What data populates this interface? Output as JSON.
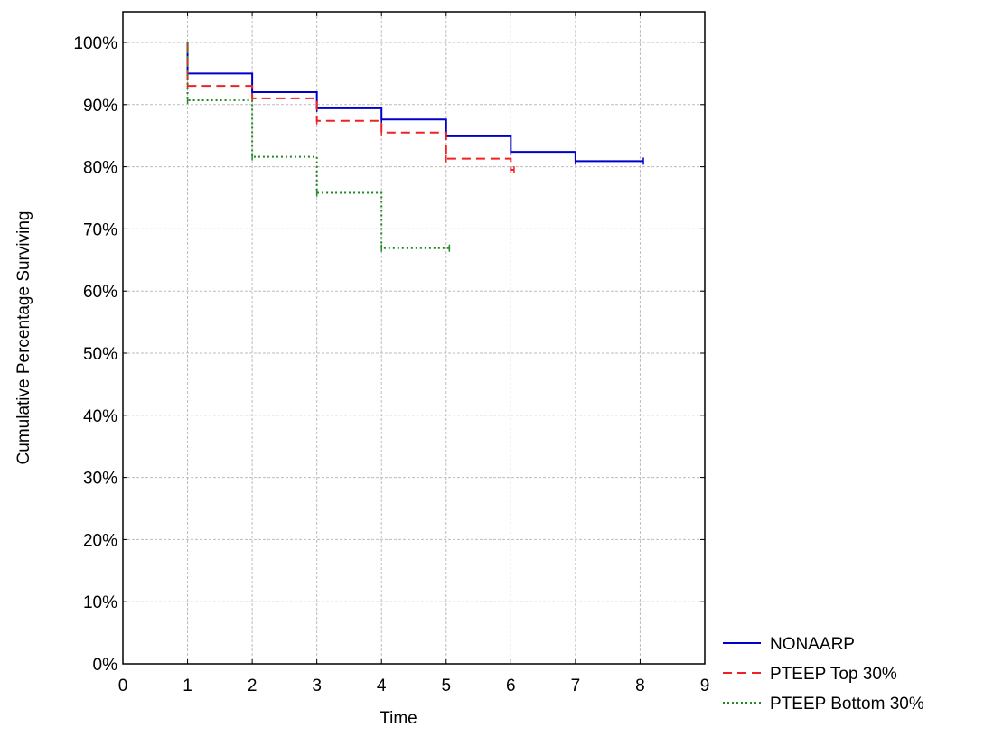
{
  "chart_data": {
    "type": "line",
    "title": "",
    "xlabel": "Time",
    "ylabel": "Cumulative Percentage Surviving",
    "xlim": [
      0,
      9
    ],
    "ylim": [
      0,
      100
    ],
    "xticks": [
      0,
      1,
      2,
      3,
      4,
      5,
      6,
      7,
      8,
      9
    ],
    "yticks": [
      0,
      10,
      20,
      30,
      40,
      50,
      60,
      70,
      80,
      90,
      100
    ],
    "ytick_labels": [
      "0%",
      "10%",
      "20%",
      "30%",
      "40%",
      "50%",
      "60%",
      "70%",
      "80%",
      "90%",
      "100%"
    ],
    "grid": true,
    "legend_position": "bottom-right",
    "series": [
      {
        "name": "NONAARP",
        "color": "#0000cc",
        "dash": "solid",
        "step": true,
        "x": [
          1,
          1,
          2,
          3,
          4,
          5,
          6,
          7,
          8.05
        ],
        "y": [
          100,
          95,
          92,
          89.4,
          87.6,
          84.9,
          82.4,
          80.9,
          80.9
        ]
      },
      {
        "name": "PTEEP Top 30%",
        "color": "#ee2222",
        "dash": "dashed",
        "step": true,
        "x": [
          1,
          1,
          2,
          3,
          4,
          5,
          6,
          6.05
        ],
        "y": [
          100,
          93,
          91,
          87.4,
          85.5,
          81.3,
          79.5,
          79.5
        ]
      },
      {
        "name": "PTEEP Bottom 30%",
        "color": "#228822",
        "dash": "dotted",
        "step": true,
        "x": [
          1,
          1,
          2,
          3,
          4,
          5.05
        ],
        "y": [
          100,
          90.7,
          81.6,
          75.8,
          66.9,
          66.9
        ]
      }
    ]
  }
}
